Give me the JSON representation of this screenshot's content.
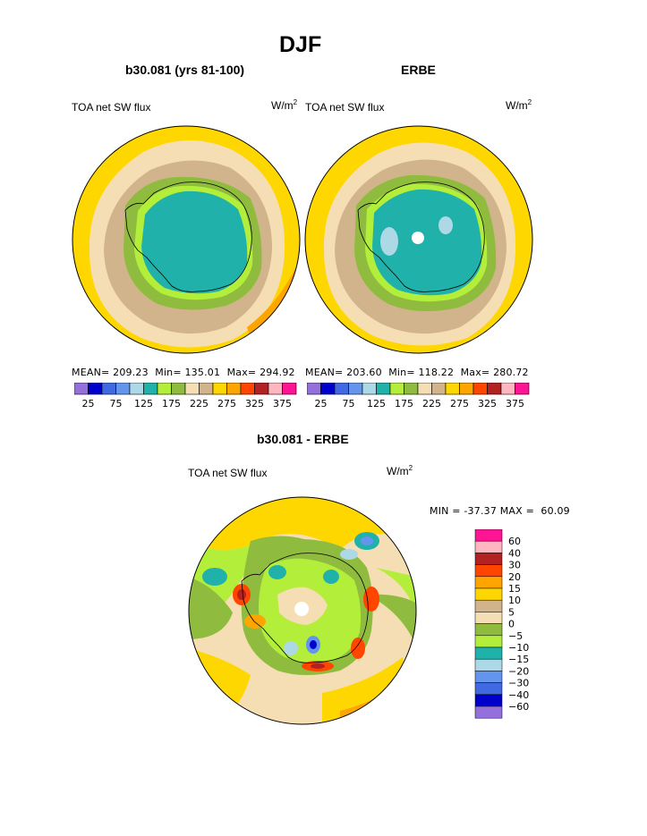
{
  "page": {
    "title": "DJF",
    "bottom_title": "b30.081 - ERBE"
  },
  "chart_data": [
    {
      "type": "heatmap",
      "projection": "south-polar-stereographic",
      "title": "b30.081 (yrs 81-100)",
      "field_label": "TOA net SW flux",
      "units": "W/m",
      "units_sup": "2",
      "stats": {
        "mean_label": "MEAN=",
        "mean": "209.23",
        "min_label": "Min=",
        "min": "135.01",
        "max_label": "Max=",
        "max": "294.92"
      },
      "legend_placement": "bottom",
      "tick_labels": [
        "25",
        "75",
        "125",
        "175",
        "225",
        "275",
        "325",
        "375"
      ]
    },
    {
      "type": "heatmap",
      "projection": "south-polar-stereographic",
      "title": "ERBE",
      "field_label": "TOA net SW flux",
      "units": "W/m",
      "units_sup": "2",
      "stats": {
        "mean_label": "MEAN=",
        "mean": "203.60",
        "min_label": "Min=",
        "min": "118.22",
        "max_label": "Max=",
        "max": "280.72"
      },
      "legend_placement": "bottom",
      "tick_labels": [
        "25",
        "75",
        "125",
        "175",
        "225",
        "275",
        "325",
        "375"
      ]
    },
    {
      "type": "heatmap",
      "projection": "south-polar-stereographic",
      "title": "b30.081 - ERBE",
      "field_label": "TOA net SW flux",
      "units": "W/m",
      "units_sup": "2",
      "minmax_text": "MIN = -37.37 MAX =  60.09",
      "legend_placement": "right",
      "tick_labels": [
        "60",
        "40",
        "30",
        "20",
        "15",
        "10",
        "5",
        "0",
        "-5",
        "-10",
        "-15",
        "-20",
        "-30",
        "-40",
        "-60"
      ]
    }
  ],
  "colors": {
    "abs_scale": [
      "#9370db",
      "#0000cd",
      "#4169e1",
      "#6495ed",
      "#add8e6",
      "#20b2aa",
      "#b3ee3a",
      "#8fbc3f",
      "#f5deb3",
      "#d2b48c",
      "#ffd700",
      "#ffa500",
      "#ff4500",
      "#b22222",
      "#ffb6c1",
      "#ff1493"
    ],
    "diff_scale": [
      "#ff1493",
      "#ffb6c1",
      "#b22222",
      "#ff4500",
      "#ffa500",
      "#ffd700",
      "#d2b48c",
      "#f5deb3",
      "#8fbc3f",
      "#b3ee3a",
      "#20b2aa",
      "#add8e6",
      "#6495ed",
      "#4169e1",
      "#0000cd",
      "#9370db"
    ]
  }
}
